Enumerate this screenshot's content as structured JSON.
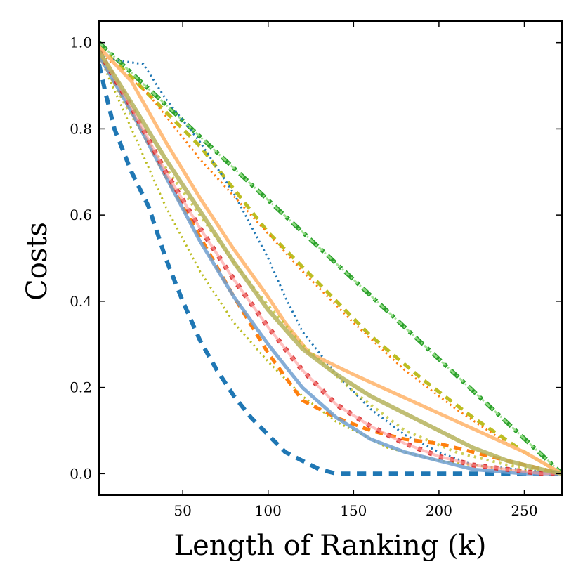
{
  "chart_data": {
    "type": "line",
    "title": "",
    "xlabel": "Length of Ranking (k)",
    "ylabel": "Costs",
    "xlim": [
      1,
      272
    ],
    "ylim": [
      -0.05,
      1.05
    ],
    "xticks": [
      50,
      100,
      150,
      200,
      250
    ],
    "yticks": [
      0.0,
      0.2,
      0.4,
      0.6,
      0.8,
      1.0
    ],
    "xtick_labels": [
      "50",
      "100",
      "150",
      "200",
      "250"
    ],
    "ytick_labels": [
      "0.0",
      "0.2",
      "0.4",
      "0.6",
      "0.8",
      "1.0"
    ],
    "grid": false,
    "legend": "none",
    "series": [
      {
        "color": "#2ca02c",
        "style": "dashdot",
        "width": 6,
        "alpha": 1.0,
        "x": [
          1,
          272
        ],
        "y": [
          1.0,
          0.0
        ]
      },
      {
        "color": "#98df8a",
        "style": "dashdot",
        "width": 3,
        "alpha": 0.9,
        "x": [
          1,
          272
        ],
        "y": [
          1.0,
          0.0
        ]
      },
      {
        "color": "#bcbd22",
        "style": "dashed",
        "width": 5,
        "alpha": 1.0,
        "x": [
          1,
          20,
          40,
          60,
          80,
          100,
          130,
          160,
          190,
          220,
          250,
          272
        ],
        "y": [
          0.99,
          0.92,
          0.84,
          0.76,
          0.66,
          0.56,
          0.44,
          0.32,
          0.22,
          0.13,
          0.05,
          0.0
        ]
      },
      {
        "color": "#1f77b4",
        "style": "dotted",
        "width": 3,
        "alpha": 1.0,
        "x": [
          1,
          10,
          27,
          40,
          60,
          80,
          100,
          110,
          120,
          140,
          160,
          180,
          200,
          220,
          272
        ],
        "y": [
          0.97,
          0.96,
          0.95,
          0.87,
          0.77,
          0.65,
          0.5,
          0.41,
          0.33,
          0.23,
          0.15,
          0.09,
          0.05,
          0.02,
          0.0
        ]
      },
      {
        "color": "#ff7f0e",
        "style": "dotted",
        "width": 3,
        "alpha": 1.0,
        "x": [
          1,
          30,
          60,
          90,
          120,
          150,
          180,
          210,
          240,
          272
        ],
        "y": [
          0.98,
          0.88,
          0.73,
          0.6,
          0.47,
          0.35,
          0.24,
          0.15,
          0.07,
          0.0
        ]
      },
      {
        "color": "#ffbb78",
        "style": "solid",
        "width": 5,
        "alpha": 0.95,
        "x": [
          1,
          20,
          40,
          60,
          80,
          100,
          110,
          124,
          150,
          200,
          250,
          272
        ],
        "y": [
          0.99,
          0.91,
          0.77,
          0.64,
          0.52,
          0.41,
          0.35,
          0.28,
          0.23,
          0.14,
          0.05,
          0.0
        ]
      },
      {
        "color": "#bcbd22",
        "style": "dotted",
        "width": 4,
        "alpha": 0.75,
        "x": [
          1,
          20,
          40,
          60,
          80,
          100,
          120,
          150,
          180,
          210,
          240,
          272
        ],
        "y": [
          0.97,
          0.83,
          0.71,
          0.6,
          0.49,
          0.39,
          0.3,
          0.19,
          0.1,
          0.05,
          0.02,
          0.0
        ]
      },
      {
        "color": "#bcbd22",
        "style": "dotted",
        "width": 3,
        "alpha": 1.0,
        "x": [
          1,
          20,
          40,
          60,
          80,
          100,
          120,
          140,
          170,
          200,
          240,
          272
        ],
        "y": [
          0.97,
          0.8,
          0.62,
          0.47,
          0.35,
          0.26,
          0.18,
          0.12,
          0.06,
          0.03,
          0.01,
          0.0
        ]
      },
      {
        "color": "#1f77b4",
        "style": "dashed",
        "width": 6,
        "alpha": 1.0,
        "x": [
          1,
          5,
          10,
          20,
          30,
          40,
          50,
          60,
          70,
          80,
          90,
          100,
          110,
          120,
          130,
          140,
          272
        ],
        "y": [
          0.95,
          0.88,
          0.8,
          0.7,
          0.62,
          0.5,
          0.4,
          0.31,
          0.24,
          0.18,
          0.13,
          0.09,
          0.05,
          0.03,
          0.01,
          0.0,
          0.0
        ]
      },
      {
        "color": "#ff7f0e",
        "style": "dashed",
        "width": 5,
        "alpha": 1.0,
        "x": [
          1,
          20,
          40,
          60,
          80,
          100,
          120,
          140,
          160,
          180,
          200,
          220,
          240,
          272
        ],
        "y": [
          0.97,
          0.84,
          0.69,
          0.55,
          0.41,
          0.28,
          0.17,
          0.13,
          0.1,
          0.08,
          0.07,
          0.05,
          0.03,
          0.0
        ]
      },
      {
        "color": "#6f9fd0",
        "style": "solid",
        "width": 5,
        "alpha": 0.85,
        "x": [
          1,
          20,
          40,
          60,
          80,
          100,
          120,
          140,
          160,
          180,
          200,
          220,
          250,
          272
        ],
        "y": [
          0.97,
          0.84,
          0.69,
          0.54,
          0.41,
          0.3,
          0.2,
          0.13,
          0.08,
          0.05,
          0.03,
          0.01,
          0.0,
          0.0
        ]
      },
      {
        "color": "#d62728",
        "style": "dotted",
        "width": 7,
        "alpha": 0.9,
        "x": [
          1,
          20,
          40,
          60,
          80,
          100,
          120,
          140,
          160,
          180,
          200,
          220,
          240,
          260,
          272
        ],
        "y": [
          0.98,
          0.85,
          0.7,
          0.57,
          0.45,
          0.34,
          0.24,
          0.16,
          0.11,
          0.07,
          0.04,
          0.02,
          0.01,
          0.0,
          0.0
        ]
      },
      {
        "color": "#ff9896",
        "style": "solid",
        "width": 4,
        "alpha": 0.6,
        "x": [
          1,
          20,
          40,
          60,
          80,
          100,
          120,
          140,
          160,
          180,
          200,
          220,
          240,
          260,
          272
        ],
        "y": [
          0.98,
          0.85,
          0.7,
          0.57,
          0.45,
          0.34,
          0.24,
          0.16,
          0.11,
          0.07,
          0.04,
          0.02,
          0.01,
          0.0,
          0.0
        ]
      },
      {
        "color": "#b5b35c",
        "style": "solid",
        "width": 6,
        "alpha": 0.85,
        "x": [
          1,
          20,
          40,
          60,
          80,
          100,
          120,
          140,
          160,
          180,
          200,
          220,
          240,
          260,
          272
        ],
        "y": [
          0.98,
          0.86,
          0.73,
          0.61,
          0.49,
          0.38,
          0.29,
          0.23,
          0.18,
          0.14,
          0.1,
          0.06,
          0.03,
          0.01,
          0.0
        ]
      }
    ]
  }
}
